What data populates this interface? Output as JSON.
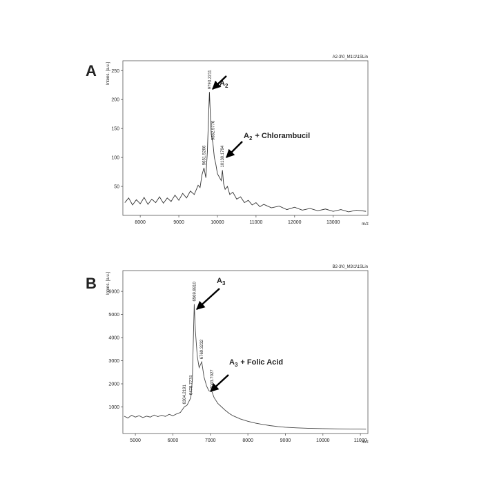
{
  "chart_data": [
    {
      "type": "line",
      "panel": "A",
      "y_label": "Intens. [a.u.]",
      "x_label": "m/z",
      "file_label": "A2-3\\0_M1\\1\\1SLin",
      "xlim": [
        7550,
        13900
      ],
      "xticks": [
        8000,
        9000,
        10000,
        11000,
        12000,
        13000
      ],
      "ylim": [
        0,
        267
      ],
      "yticks": [
        50,
        100,
        150,
        200,
        250
      ],
      "x": [
        7600,
        7700,
        7800,
        7900,
        8000,
        8100,
        8200,
        8300,
        8400,
        8500,
        8600,
        8700,
        8800,
        8900,
        9000,
        9100,
        9200,
        9300,
        9400,
        9500,
        9550,
        9600,
        9651.5,
        9700,
        9740,
        9770,
        9793.2,
        9810,
        9840,
        9882.9,
        9920,
        9960,
        10000,
        10050,
        10100,
        10130.2,
        10160,
        10200,
        10260,
        10320,
        10400,
        10500,
        10600,
        10700,
        10800,
        10900,
        11000,
        11100,
        11200,
        11400,
        11600,
        11800,
        12000,
        12200,
        12400,
        12600,
        12800,
        13000,
        13200,
        13400,
        13600,
        13850
      ],
      "series": [
        {
          "color": "#333333",
          "values": [
            22,
            30,
            18,
            27,
            20,
            31,
            19,
            28,
            22,
            32,
            21,
            30,
            24,
            35,
            26,
            38,
            30,
            42,
            36,
            52,
            48,
            70,
            82,
            65,
            110,
            170,
            213,
            185,
            140,
            125,
            100,
            88,
            72,
            66,
            60,
            78,
            55,
            45,
            50,
            36,
            40,
            28,
            32,
            22,
            26,
            18,
            22,
            15,
            19,
            13,
            16,
            10,
            14,
            9,
            12,
            8,
            11,
            7,
            10,
            6,
            9,
            7
          ]
        }
      ],
      "peak_labels": [
        {
          "value": 9793.2211,
          "label": "9793.2211"
        },
        {
          "value": 9882.9776,
          "label": "9882.9776"
        },
        {
          "value": 9651.5266,
          "label": "9651.5266"
        },
        {
          "value": 10130.1794,
          "label": "10130.1794"
        }
      ],
      "annotations": [
        {
          "text": "A",
          "subscript": "2"
        },
        {
          "text": "A",
          "subscript": "2",
          "suffix": "+ Chlorambucil"
        }
      ]
    },
    {
      "type": "line",
      "panel": "B",
      "y_label": "Intens. [a.u.]",
      "x_label": "m/z",
      "file_label": "B2-3\\0_M3\\1\\1SLin",
      "xlim": [
        4667,
        11200
      ],
      "xticks": [
        5000,
        6000,
        7000,
        8000,
        9000,
        10000,
        11000
      ],
      "ylim": [
        -150,
        6900
      ],
      "yticks": [
        1000,
        2000,
        3000,
        4000,
        5000,
        6000
      ],
      "x": [
        4700,
        4800,
        4900,
        5000,
        5100,
        5200,
        5300,
        5400,
        5500,
        5600,
        5700,
        5800,
        5900,
        6000,
        6100,
        6200,
        6304.2,
        6380,
        6478.7,
        6520,
        6550,
        6569.9,
        6600,
        6650,
        6700,
        6769.3,
        6830,
        6900,
        6960,
        7043.7,
        7100,
        7200,
        7300,
        7400,
        7500,
        7600,
        7800,
        8000,
        8200,
        8400,
        8600,
        8800,
        9000,
        9300,
        9600,
        10000,
        10400,
        10800,
        11150
      ],
      "series": [
        {
          "color": "#444444",
          "values": [
            600,
            520,
            640,
            560,
            620,
            540,
            600,
            560,
            650,
            580,
            640,
            590,
            680,
            620,
            700,
            760,
            1000,
            1080,
            1400,
            2200,
            4200,
            5450,
            4300,
            3200,
            2700,
            2950,
            2300,
            1900,
            1700,
            1650,
            1400,
            1150,
            1000,
            850,
            720,
            620,
            480,
            380,
            300,
            240,
            190,
            150,
            120,
            95,
            75,
            60,
            50,
            45,
            40
          ]
        }
      ],
      "peak_labels": [
        {
          "value": 6569.881,
          "label": "6569.8810"
        },
        {
          "value": 6769.3232,
          "label": "6769.3232"
        },
        {
          "value": 6304.2191,
          "label": "6304.2191"
        },
        {
          "value": 6478.7274,
          "label": "6478.7274"
        },
        {
          "value": 7043.7027,
          "label": "7043.7027"
        }
      ],
      "annotations": [
        {
          "text": "A",
          "subscript": "3"
        },
        {
          "text": "A",
          "subscript": "3",
          "suffix": "+ Folic Acid"
        }
      ]
    }
  ]
}
